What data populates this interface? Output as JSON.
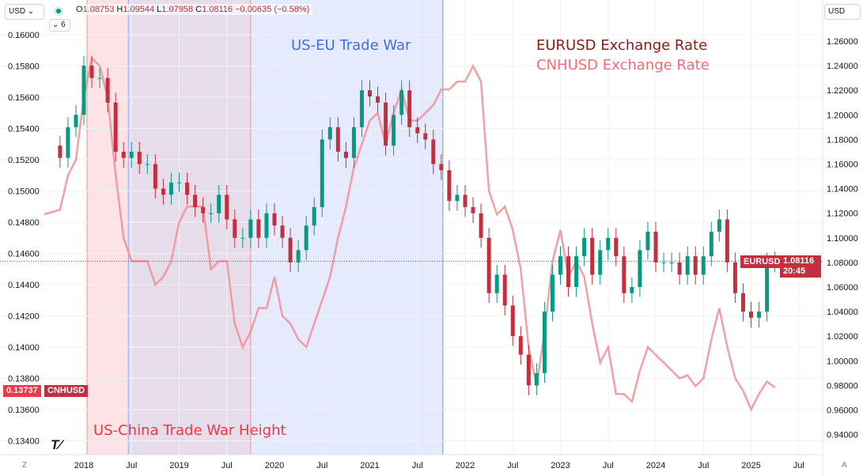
{
  "header": {
    "currency_left": "USD",
    "currency_right": "USD",
    "interval_toggle": "6",
    "ohlc": {
      "o_label": "O",
      "o": "1.08753",
      "h_label": "H",
      "h": "1.09544",
      "l_label": "L",
      "l": "1.07958",
      "c_label": "C",
      "c": "1.08116",
      "change": "−0.00635 (−0.58%)"
    }
  },
  "annotations": {
    "us_eu": "US-EU Trade War",
    "us_china": "US-China Trade War Height",
    "legend_eurusd": "EURUSD Exchange Rate",
    "legend_cnhusd": "CNHUSD Exchange Rate"
  },
  "price_tags": {
    "eurusd_symbol": "EURUSD",
    "eurusd_price": "1.08116",
    "eurusd_countdown": "20:45",
    "cnhusd_price": "0.13737",
    "cnhusd_symbol": "CNHUSD"
  },
  "colors": {
    "eurusd_up": "#089981",
    "eurusd_down": "#c2303f",
    "cnhusd": "#f28e96",
    "us_china_shade": "#fde3e5",
    "us_eu_shade": "#e3e8fd",
    "overlap_shade": "#e6dcea",
    "eur_label": "#8b1a1a",
    "cnh_label": "#f26d78",
    "us_eu_label": "#3e6ef0",
    "china_label": "#f23645"
  },
  "chart_data": {
    "type": "line",
    "x_ticks": [
      "2018",
      "Jul",
      "2019",
      "Jul",
      "2020",
      "Jul",
      "2021",
      "Jul",
      "2022",
      "Jul",
      "2023",
      "Jul",
      "2024",
      "Jul",
      "2025",
      "Jul"
    ],
    "left_axis": {
      "ticks": [
        "0.16000",
        "0.15800",
        "0.15600",
        "0.15400",
        "0.15200",
        "0.15000",
        "0.14800",
        "0.14600",
        "0.14400",
        "0.14200",
        "0.14000",
        "0.13800",
        "0.13600",
        "0.13400"
      ],
      "ylim": [
        0.1334,
        0.1612
      ]
    },
    "right_axis": {
      "ticks": [
        "1.26000",
        "1.24000",
        "1.22000",
        "1.20000",
        "1.18000",
        "1.16000",
        "1.14000",
        "1.12000",
        "1.10000",
        "1.08000",
        "1.06000",
        "1.04000",
        "1.02000",
        "1.00000",
        "0.98000",
        "0.96000",
        "0.94000"
      ],
      "ylim": [
        0.933,
        1.272
      ]
    },
    "shaded_periods": [
      {
        "label": "US-China Trade War Height",
        "start": "2018-01",
        "end": "2019-10"
      },
      {
        "label": "US-EU Trade War",
        "start": "2018-06",
        "end": "2021-11"
      }
    ],
    "series": [
      {
        "name": "EURUSD",
        "style": "candlestick",
        "axis": "right",
        "dates": [
          "2017-08",
          "2017-10",
          "2017-11",
          "2017-12",
          "2018-01",
          "2018-02",
          "2018-03",
          "2018-04",
          "2018-05",
          "2018-06",
          "2018-07",
          "2018-08",
          "2018-09",
          "2018-10",
          "2018-11",
          "2018-12",
          "2019-01",
          "2019-02",
          "2019-03",
          "2019-04",
          "2019-05",
          "2019-06",
          "2019-07",
          "2019-08",
          "2019-09",
          "2019-10",
          "2019-11",
          "2019-12",
          "2020-01",
          "2020-02",
          "2020-03",
          "2020-04",
          "2020-05",
          "2020-06",
          "2020-07",
          "2020-08",
          "2020-09",
          "2020-10",
          "2020-11",
          "2020-12",
          "2021-01",
          "2021-02",
          "2021-03",
          "2021-04",
          "2021-05",
          "2021-06",
          "2021-07",
          "2021-08",
          "2021-09",
          "2021-10",
          "2021-11",
          "2021-12",
          "2022-01",
          "2022-02",
          "2022-03",
          "2022-04",
          "2022-05",
          "2022-06",
          "2022-07",
          "2022-08",
          "2022-09",
          "2022-10",
          "2022-11",
          "2022-12",
          "2023-01",
          "2023-02",
          "2023-03",
          "2023-04",
          "2023-05",
          "2023-06",
          "2023-07",
          "2023-08",
          "2023-09",
          "2023-10",
          "2023-11",
          "2023-12",
          "2024-01",
          "2024-02",
          "2024-03",
          "2024-04",
          "2024-05",
          "2024-06",
          "2024-07",
          "2024-08",
          "2024-09",
          "2024-10",
          "2024-11",
          "2024-12",
          "2025-01",
          "2025-02",
          "2025-03",
          "2025-04"
        ],
        "values": [
          1.175,
          1.165,
          1.19,
          1.2,
          1.24,
          1.23,
          1.23,
          1.21,
          1.17,
          1.165,
          1.17,
          1.16,
          1.16,
          1.14,
          1.135,
          1.145,
          1.145,
          1.135,
          1.125,
          1.12,
          1.12,
          1.135,
          1.115,
          1.1,
          1.1,
          1.115,
          1.1,
          1.12,
          1.11,
          1.1,
          1.08,
          1.09,
          1.11,
          1.125,
          1.18,
          1.19,
          1.17,
          1.165,
          1.19,
          1.22,
          1.215,
          1.21,
          1.175,
          1.2,
          1.22,
          1.19,
          1.185,
          1.18,
          1.16,
          1.155,
          1.13,
          1.135,
          1.125,
          1.12,
          1.1,
          1.055,
          1.07,
          1.045,
          1.02,
          1.005,
          0.98,
          0.99,
          1.04,
          1.07,
          1.085,
          1.06,
          1.085,
          1.1,
          1.07,
          1.09,
          1.1,
          1.085,
          1.055,
          1.06,
          1.09,
          1.105,
          1.08,
          1.08,
          1.08,
          1.07,
          1.085,
          1.07,
          1.085,
          1.105,
          1.115,
          1.08,
          1.055,
          1.04,
          1.035,
          1.04,
          1.08,
          1.081
        ]
      },
      {
        "name": "CNHUSD",
        "style": "line",
        "axis": "left",
        "values": [
          0.1485,
          0.1488,
          0.151,
          0.152,
          0.156,
          0.1585,
          0.158,
          0.156,
          0.151,
          0.147,
          0.1455,
          0.1455,
          0.1455,
          0.144,
          0.1445,
          0.1455,
          0.148,
          0.149,
          0.149,
          0.149,
          0.145,
          0.1455,
          0.1455,
          0.1415,
          0.14,
          0.141,
          0.1425,
          0.1425,
          0.1445,
          0.142,
          0.1415,
          0.1405,
          0.14,
          0.1415,
          0.143,
          0.1445,
          0.147,
          0.149,
          0.1515,
          0.153,
          0.1545,
          0.155,
          0.153,
          0.155,
          0.1565,
          0.1545,
          0.1545,
          0.155,
          0.1555,
          0.1565,
          0.1565,
          0.157,
          0.157,
          0.158,
          0.157,
          0.15,
          0.1485,
          0.149,
          0.1475,
          0.145,
          0.14,
          0.1375,
          0.141,
          0.1455,
          0.1475,
          0.1445,
          0.1455,
          0.1445,
          0.1415,
          0.139,
          0.14,
          0.137,
          0.137,
          0.1365,
          0.1385,
          0.14,
          0.1395,
          0.139,
          0.1385,
          0.138,
          0.1382,
          0.1375,
          0.138,
          0.1405,
          0.1425,
          0.14,
          0.138,
          0.1372,
          0.136,
          0.137,
          0.1378,
          0.1374
        ]
      }
    ]
  }
}
